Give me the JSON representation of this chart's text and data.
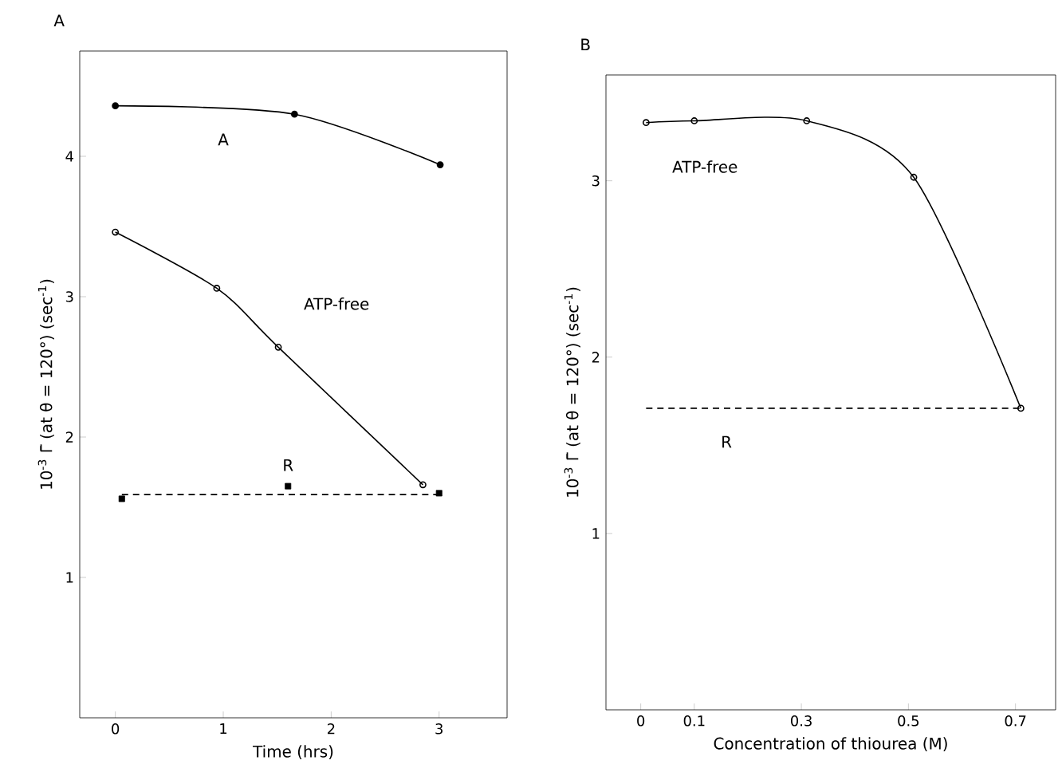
{
  "chart_data": [
    {
      "type": "line",
      "title": "A",
      "xlabel": "Time (hrs)",
      "ylabel": "10$^{-3}$ Γ̄ (at θ = 120°) (sec$^{-1}$)",
      "xlim": [
        -0.33,
        3.63
      ],
      "ylim": [
        0,
        4.75
      ],
      "xticks": [
        0,
        1,
        2,
        3
      ],
      "yticks": [
        1,
        2,
        3,
        4
      ],
      "grid": false,
      "legend": false,
      "series": [
        {
          "name": "A",
          "color": "#000000",
          "marker": "circle",
          "line_style": "solid",
          "x": [
            0,
            1.66,
            3.01
          ],
          "values": [
            4.36,
            4.3,
            3.94
          ]
        },
        {
          "name": "ATP-free",
          "color": "#000000",
          "marker": "open circle",
          "line_style": "solid",
          "x": [
            0,
            0.94,
            1.51,
            2.85
          ],
          "values": [
            3.46,
            3.06,
            2.64,
            1.66
          ]
        },
        {
          "name": "R",
          "type": "scatter",
          "color": "#000000",
          "marker": "square",
          "x": [
            0.06,
            1.6,
            3.0
          ],
          "values": [
            1.56,
            1.65,
            1.6
          ]
        },
        {
          "color": "#000000",
          "marker": "none",
          "line_style": "dashed",
          "x": [
            0.06,
            3.0
          ],
          "values": [
            1.59,
            1.59
          ]
        }
      ]
    },
    {
      "type": "line",
      "title": "B",
      "xlabel": "Concentration of thiourea (M)",
      "ylabel": "10$^{-3}$ Γ̄ (at θ = 120°) (sec$^{-1}$)",
      "xlim": [
        -0.065,
        0.775
      ],
      "ylim": [
        0,
        3.6
      ],
      "xticks": [
        0,
        0.1,
        0.3,
        0.5,
        0.7
      ],
      "yticks": [
        1,
        2,
        3
      ],
      "grid": false,
      "legend": false,
      "series": [
        {
          "name": "ATP-free",
          "color": "#000000",
          "marker": "open circle",
          "line_style": "solid",
          "x": [
            0.01,
            0.1,
            0.31,
            0.51,
            0.71
          ],
          "values": [
            3.33,
            3.34,
            3.34,
            3.02,
            1.71
          ]
        },
        {
          "name": "R",
          "color": "#000000",
          "marker": "none",
          "line_style": "dashed",
          "x": [
            0.01,
            0.71
          ],
          "values": [
            1.71,
            1.71
          ]
        }
      ]
    }
  ]
}
